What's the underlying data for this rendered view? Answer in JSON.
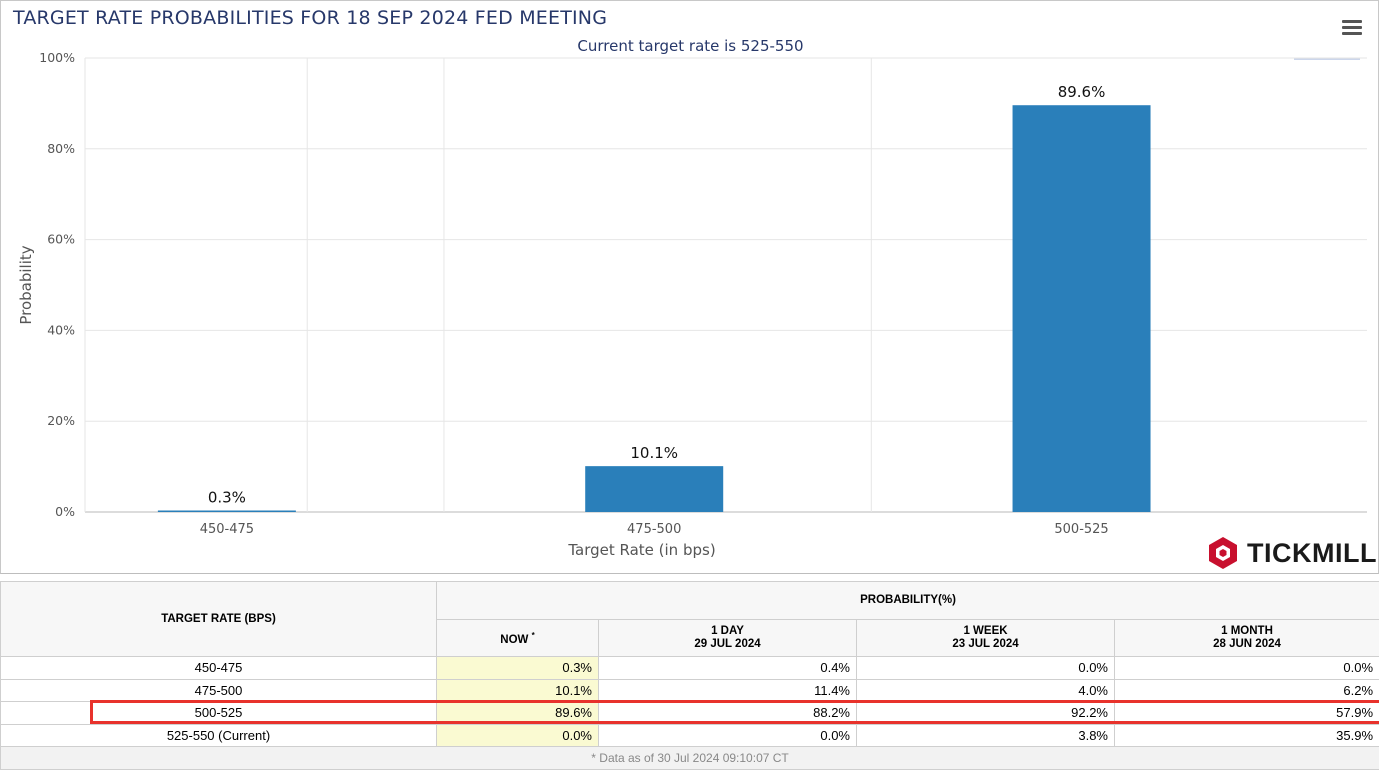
{
  "header": {
    "title": "TARGET RATE PROBABILITIES FOR 18 SEP 2024 FED MEETING",
    "subtitle": "Current target rate is 525-550",
    "menu_icon": "hamburger-menu-icon"
  },
  "brand": {
    "name": "TICKMILL",
    "logo_icon": "tickmill-logo-icon",
    "logo_color": "#c8102e"
  },
  "chart_data": {
    "type": "bar",
    "categories": [
      "450-475",
      "475-500",
      "500-525"
    ],
    "values": [
      0.3,
      10.1,
      89.6
    ],
    "data_labels": [
      "0.3%",
      "10.1%",
      "89.6%"
    ],
    "xlabel": "Target Rate (in bps)",
    "ylabel": "Probability",
    "ylim": [
      0,
      100
    ],
    "yticks": [
      "0%",
      "20%",
      "40%",
      "60%",
      "80%",
      "100%"
    ],
    "grid": true,
    "bar_color": "#2a7fba"
  },
  "table": {
    "header_rate": "TARGET RATE (BPS)",
    "header_prob": "PROBABILITY(%)",
    "columns": [
      {
        "label": "NOW",
        "sup": "*",
        "date": ""
      },
      {
        "label": "1 DAY",
        "sup": "",
        "date": "29 JUL 2024"
      },
      {
        "label": "1 WEEK",
        "sup": "",
        "date": "23 JUL 2024"
      },
      {
        "label": "1 MONTH",
        "sup": "",
        "date": "28 JUN 2024"
      }
    ],
    "rows": [
      {
        "rate": "450-475",
        "values": [
          "0.3%",
          "0.4%",
          "0.0%",
          "0.0%"
        ]
      },
      {
        "rate": "475-500",
        "values": [
          "10.1%",
          "11.4%",
          "4.0%",
          "6.2%"
        ]
      },
      {
        "rate": "500-525",
        "values": [
          "89.6%",
          "88.2%",
          "92.2%",
          "57.9%"
        ]
      },
      {
        "rate": "525-550 (Current)",
        "values": [
          "0.0%",
          "0.0%",
          "3.8%",
          "35.9%"
        ]
      }
    ],
    "footnote": "* Data as of 30 Jul 2024 09:10:07 CT",
    "highlight_color": "#e8322c"
  }
}
